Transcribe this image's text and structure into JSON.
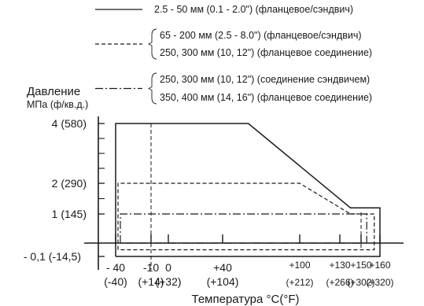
{
  "chart_data": {
    "type": "line",
    "title": "",
    "ylabel_line1": "Давление",
    "ylabel_line2": "МПа (ф/кв.д.)",
    "xlabel": "Температура °C(°F)",
    "grid": false,
    "legend_position": "top",
    "legend": [
      {
        "style": "solid",
        "lines": [
          "2.5 - 50 мм (0.1 - 2.0\") (фланцевое/сэндвич)"
        ]
      },
      {
        "style": "dashed",
        "lines": [
          "65 - 200 мм (2.5 - 8.0\") (фланцевое/сэндвич)",
          "250, 300 мм (10, 12\") (фланцевое соединение)"
        ]
      },
      {
        "style": "dashdot",
        "lines": [
          "250, 300 мм (10, 12\") (соединение сэндвичем)",
          "350, 400 мм (14, 16\") (фланцевое соединение)"
        ]
      }
    ],
    "y_ticks": [
      {
        "value": 4,
        "label": "4 (580)"
      },
      {
        "value": 2,
        "label": "2 (290)"
      },
      {
        "value": 1,
        "label": "1 (145)"
      },
      {
        "value": -0.1,
        "label": "- 0,1 (-14,5)"
      }
    ],
    "y_minor_ticks": [
      3.5,
      3,
      2.5,
      1.5
    ],
    "x_ticks": [
      {
        "value": -40,
        "top": "- 40",
        "bottom": "(-40)"
      },
      {
        "value": -10,
        "top": "-10",
        "bottom": "(+14)"
      },
      {
        "value": 0,
        "top": "0",
        "bottom": "(+32)"
      },
      {
        "value": 40,
        "top": "+40",
        "bottom": "(+104)"
      },
      {
        "value": 100,
        "top": "+100",
        "bottom": "(+212)"
      },
      {
        "value": 130,
        "top": "+130",
        "bottom": "(+266)"
      },
      {
        "value": 150,
        "top": "+150",
        "bottom": "(+302)"
      },
      {
        "value": 160,
        "top": "+160",
        "bottom": "(+320)"
      }
    ],
    "xlim": [
      -40,
      160
    ],
    "series": [
      {
        "style": "solid",
        "points": [
          [
            -40,
            -0.1
          ],
          [
            -40,
            4
          ],
          [
            60,
            4
          ],
          [
            140,
            1.2
          ],
          [
            160,
            1.2
          ],
          [
            160,
            -0.1
          ],
          [
            -40,
            -0.1
          ]
        ]
      },
      {
        "style": "dashed",
        "points": [
          [
            -38,
            -0.05
          ],
          [
            -38,
            2
          ],
          [
            100,
            2
          ],
          [
            140,
            1.0
          ],
          [
            157,
            1.0
          ],
          [
            157,
            -0.05
          ],
          [
            -38,
            -0.05
          ]
        ]
      },
      {
        "style": "dashdot",
        "points": [
          [
            -36,
            0.0
          ],
          [
            -36,
            1.0
          ],
          [
            153,
            1.0
          ],
          [
            153,
            0.0
          ],
          [
            -36,
            0.0
          ]
        ]
      }
    ],
    "vertical_guide": {
      "style": "dashed",
      "x": -10
    },
    "vertical_guide_right": {
      "style": "dashed",
      "x": 150
    },
    "zero_line": {
      "y": 0
    }
  }
}
